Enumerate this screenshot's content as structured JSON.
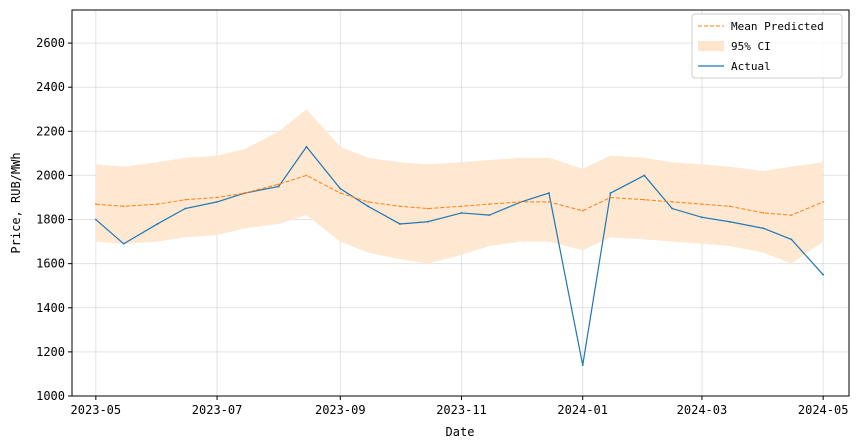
{
  "chart_data": {
    "type": "line",
    "xlabel": "Date",
    "ylabel": "Price, RUB/MWh",
    "xlim": [
      "2023-04-19",
      "2024-05-14"
    ],
    "ylim": [
      1000,
      2750
    ],
    "x_ticks": [
      "2023-05-01",
      "2023-07-01",
      "2023-09-01",
      "2023-11-01",
      "2024-01-01",
      "2024-03-01",
      "2024-05-01"
    ],
    "x_tick_labels": [
      "2023-05",
      "2023-07",
      "2023-09",
      "2023-11",
      "2024-01",
      "2024-03",
      "2024-05"
    ],
    "y_ticks": [
      1000,
      1200,
      1400,
      1600,
      1800,
      2000,
      2200,
      2400,
      2600
    ],
    "y_tick_labels": [
      "1000",
      "1200",
      "1400",
      "1600",
      "1800",
      "2000",
      "2200",
      "2400",
      "2600"
    ],
    "grid": true,
    "legend_position": "top-right",
    "legend": [
      "Mean Predicted",
      "95% CI",
      "Actual"
    ],
    "colors": {
      "predicted": "#ff7f0e",
      "ci": "#ffe5cc",
      "actual": "#1f77b4"
    },
    "x": [
      "2023-05-01",
      "2023-05-15",
      "2023-06-01",
      "2023-06-15",
      "2023-07-01",
      "2023-07-15",
      "2023-08-01",
      "2023-08-15",
      "2023-09-01",
      "2023-09-15",
      "2023-10-01",
      "2023-10-15",
      "2023-11-01",
      "2023-11-15",
      "2023-12-01",
      "2023-12-15",
      "2024-01-01",
      "2024-01-15",
      "2024-02-01",
      "2024-02-15",
      "2024-03-01",
      "2024-03-15",
      "2024-04-01",
      "2024-04-15",
      "2024-05-01"
    ],
    "series": [
      {
        "name": "Mean Predicted",
        "style": "dashed",
        "values": [
          1870,
          1860,
          1870,
          1890,
          1900,
          1920,
          1960,
          2000,
          1920,
          1880,
          1860,
          1850,
          1860,
          1870,
          1880,
          1880,
          1840,
          1900,
          1890,
          1880,
          1870,
          1860,
          1830,
          1820,
          1880
        ]
      },
      {
        "name": "95% CI",
        "type": "band",
        "lower": [
          1700,
          1690,
          1700,
          1720,
          1730,
          1760,
          1780,
          1820,
          1700,
          1650,
          1620,
          1600,
          1640,
          1680,
          1700,
          1700,
          1660,
          1720,
          1710,
          1700,
          1690,
          1680,
          1650,
          1600,
          1700
        ],
        "upper": [
          2050,
          2040,
          2060,
          2080,
          2090,
          2120,
          2200,
          2300,
          2130,
          2080,
          2060,
          2050,
          2060,
          2070,
          2080,
          2080,
          2030,
          2090,
          2080,
          2060,
          2050,
          2040,
          2020,
          2040,
          2060
        ]
      },
      {
        "name": "Actual",
        "values": [
          1800,
          1690,
          1780,
          1850,
          1880,
          1920,
          1950,
          2130,
          1940,
          1860,
          1780,
          1790,
          1830,
          1820,
          1880,
          1920,
          1140,
          1920,
          2000,
          1850,
          1810,
          1790,
          1760,
          1710,
          1550
        ]
      }
    ]
  }
}
